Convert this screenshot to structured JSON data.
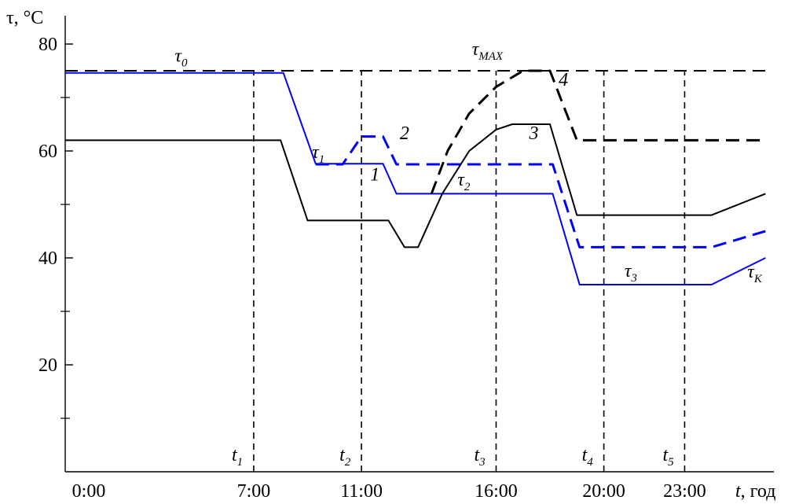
{
  "chart_data": {
    "type": "line",
    "y_axis": {
      "label": "τ, °C",
      "range": [
        0,
        85
      ],
      "tick_labels": [
        {
          "value": 80,
          "text": "80"
        },
        {
          "value": 60,
          "text": "60"
        },
        {
          "value": 40,
          "text": "40"
        },
        {
          "value": 20,
          "text": "20"
        }
      ],
      "minor_ticks": [
        10,
        30,
        50,
        70
      ]
    },
    "x_axis": {
      "label_var": "t",
      "label_unit": ", год",
      "range_hours": [
        0,
        26
      ],
      "tick_labels": [
        {
          "value": 0,
          "text": "0:00"
        },
        {
          "value": 7,
          "text": "7:00"
        },
        {
          "value": 11,
          "text": "11:00"
        },
        {
          "value": 16,
          "text": "16:00"
        },
        {
          "value": 20,
          "text": "20:00"
        },
        {
          "value": 23,
          "text": "23:00"
        }
      ]
    },
    "reference_lines": {
      "horizontal": {
        "y": 75,
        "label": "τMAX",
        "color": "#000000",
        "dashed": true
      },
      "vertical": [
        {
          "x": 7,
          "main": "t",
          "sub": "1"
        },
        {
          "x": 11,
          "main": "t",
          "sub": "2"
        },
        {
          "x": 16,
          "main": "t",
          "sub": "3"
        },
        {
          "x": 20,
          "main": "t",
          "sub": "4"
        },
        {
          "x": 23,
          "main": "t",
          "sub": "5"
        }
      ]
    },
    "series": [
      {
        "name": "1",
        "color": "#0000ff",
        "dashed": false,
        "points": [
          [
            0,
            74.6
          ],
          [
            8.1,
            74.6
          ],
          [
            9.3,
            57.6
          ],
          [
            11.8,
            57.6
          ],
          [
            12.3,
            52
          ],
          [
            18.1,
            52
          ],
          [
            19.1,
            35
          ],
          [
            24,
            35
          ],
          [
            26,
            40
          ]
        ]
      },
      {
        "name": "2",
        "color": "#0000ff",
        "dashed": true,
        "points": [
          [
            9.3,
            57.5
          ],
          [
            10.3,
            57.5
          ],
          [
            11,
            62.7
          ],
          [
            11.8,
            62.7
          ],
          [
            12.3,
            57.5
          ],
          [
            18.1,
            57.5
          ],
          [
            19.1,
            42
          ],
          [
            24,
            42
          ],
          [
            26,
            45
          ]
        ]
      },
      {
        "name": "3",
        "color": "#000000",
        "dashed": false,
        "points": [
          [
            0,
            62
          ],
          [
            8,
            62
          ],
          [
            9,
            47
          ],
          [
            12,
            47
          ],
          [
            12.6,
            42
          ],
          [
            13.1,
            42
          ],
          [
            14,
            52
          ],
          [
            15,
            60
          ],
          [
            16,
            64
          ],
          [
            16.6,
            65
          ],
          [
            18,
            65
          ],
          [
            19,
            48
          ],
          [
            24,
            48
          ],
          [
            26,
            52
          ]
        ]
      },
      {
        "name": "4",
        "color": "#000000",
        "dashed": true,
        "points": [
          [
            13.6,
            52
          ],
          [
            14.2,
            60
          ],
          [
            15,
            67
          ],
          [
            16,
            72
          ],
          [
            17,
            75
          ],
          [
            18,
            75
          ],
          [
            19,
            62
          ],
          [
            26,
            62
          ]
        ]
      }
    ],
    "annotations": [
      {
        "main": "τ",
        "sub": "0",
        "x": 4.3,
        "y": 76.7
      },
      {
        "main": "τ",
        "sub": "1",
        "x": 9.4,
        "y": 58.7
      },
      {
        "main": "τ",
        "sub": "2",
        "x": 14.8,
        "y": 53.5
      },
      {
        "main": "τ",
        "sub": "3",
        "x": 21,
        "y": 36.5
      },
      {
        "main": "τ",
        "sub": "K",
        "x": 25.6,
        "y": 36.3
      },
      {
        "main": "1",
        "sub": "",
        "x": 11.5,
        "y": 54.5
      },
      {
        "main": "2",
        "sub": "",
        "x": 12.6,
        "y": 62.2
      },
      {
        "main": "3",
        "sub": "",
        "x": 17.4,
        "y": 62.2
      },
      {
        "main": "4",
        "sub": "",
        "x": 18.5,
        "y": 72.2
      }
    ]
  }
}
